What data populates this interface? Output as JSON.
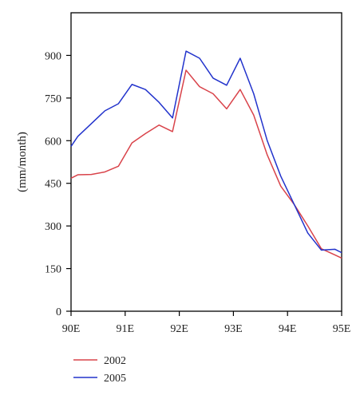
{
  "chart_data": {
    "type": "line",
    "title": "",
    "xlabel": "",
    "ylabel": "(mm/month)",
    "xlim": [
      90,
      95
    ],
    "ylim": [
      0,
      1050
    ],
    "x_ticks": [
      {
        "value": 90,
        "label": "90E"
      },
      {
        "value": 91,
        "label": "91E"
      },
      {
        "value": 92,
        "label": "92E"
      },
      {
        "value": 93,
        "label": "93E"
      },
      {
        "value": 94,
        "label": "94E"
      },
      {
        "value": 95,
        "label": "95E"
      }
    ],
    "y_ticks": [
      {
        "value": 0,
        "label": "0"
      },
      {
        "value": 150,
        "label": "150"
      },
      {
        "value": 300,
        "label": "300"
      },
      {
        "value": 450,
        "label": "450"
      },
      {
        "value": 600,
        "label": "600"
      },
      {
        "value": 750,
        "label": "750"
      },
      {
        "value": 900,
        "label": "900"
      }
    ],
    "grid": false,
    "legend_position": "bottom-left",
    "x": [
      90.0,
      90.125,
      90.375,
      90.625,
      90.875,
      91.125,
      91.375,
      91.625,
      91.875,
      92.125,
      92.375,
      92.625,
      92.875,
      93.125,
      93.375,
      93.625,
      93.875,
      94.125,
      94.375,
      94.625,
      94.875,
      95.0
    ],
    "series": [
      {
        "name": "2002",
        "color": "#d9434a",
        "values": [
          468,
          480,
          481,
          490,
          510,
          592,
          625,
          655,
          632,
          848,
          790,
          765,
          712,
          780,
          690,
          550,
          440,
          375,
          300,
          220,
          198,
          187
        ]
      },
      {
        "name": "2005",
        "color": "#2233cc",
        "values": [
          580,
          615,
          660,
          705,
          730,
          798,
          780,
          735,
          680,
          915,
          890,
          820,
          795,
          890,
          765,
          600,
          475,
          375,
          275,
          215,
          218,
          206
        ]
      }
    ]
  }
}
